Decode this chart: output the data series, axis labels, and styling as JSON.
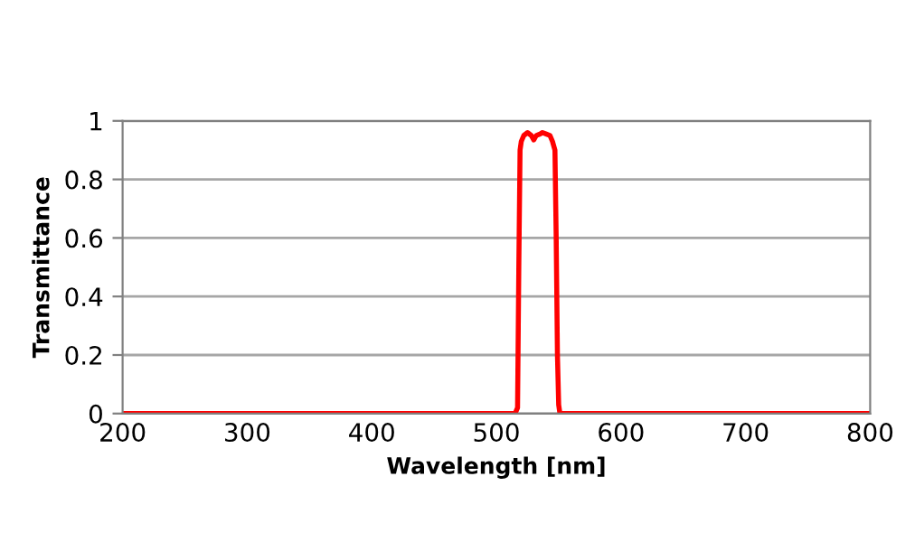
{
  "chart_data": {
    "type": "line",
    "xlabel": "Wavelength [nm]",
    "ylabel": "Transmittance",
    "series": [
      {
        "color": "#ff0000",
        "x": [
          200,
          300,
          400,
          500,
          515,
          517,
          518,
          519,
          520,
          522,
          525,
          528,
          530,
          532,
          535,
          537,
          540,
          543,
          545,
          547,
          548,
          549,
          550,
          551,
          553,
          600,
          700,
          800
        ],
        "values": [
          0,
          0,
          0,
          0,
          0,
          0.02,
          0.5,
          0.9,
          0.93,
          0.95,
          0.96,
          0.95,
          0.935,
          0.95,
          0.955,
          0.96,
          0.955,
          0.95,
          0.93,
          0.9,
          0.6,
          0.2,
          0.03,
          0,
          0,
          0,
          0,
          0
        ]
      }
    ],
    "xlim": [
      200,
      800
    ],
    "ylim": [
      0,
      1
    ],
    "xticks": [
      200,
      300,
      400,
      500,
      600,
      700,
      800
    ],
    "yticks": [
      0,
      0.2,
      0.4,
      0.6,
      0.8,
      1
    ],
    "grid": "y",
    "legend": false,
    "marker": "none",
    "line_style": "solid"
  }
}
